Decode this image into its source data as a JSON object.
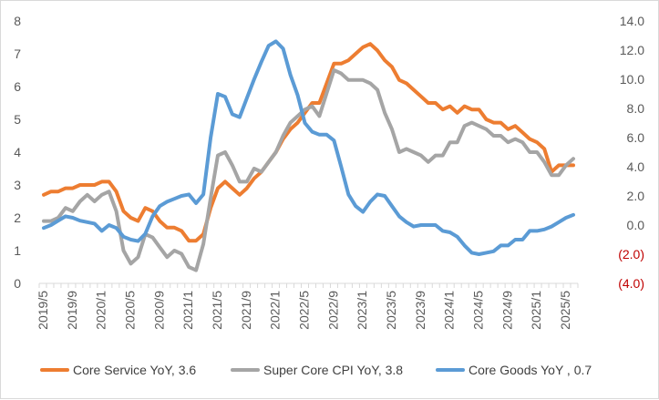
{
  "chart_data": {
    "type": "line",
    "title": "",
    "xlabel": "",
    "ylabel_left": "",
    "ylabel_right": "",
    "ylim_left": [
      0,
      8
    ],
    "ylim_right": [
      -4,
      14
    ],
    "left_tick_labels": [
      "0",
      "1",
      "2",
      "3",
      "4",
      "5",
      "6",
      "7",
      "8"
    ],
    "right_tick_labels": [
      "(4.0)",
      "(2.0)",
      "0.0",
      "2.0",
      "4.0",
      "6.0",
      "8.0",
      "10.0",
      "12.0",
      "14.0"
    ],
    "x_tick_labels": [
      "2019/5",
      "2019/9",
      "2020/1",
      "2020/5",
      "2020/9",
      "2021/1",
      "2021/5",
      "2021/9",
      "2022/1",
      "2022/5",
      "2022/9",
      "2023/1",
      "2023/5",
      "2023/9",
      "2024/1",
      "2024/5",
      "2024/9",
      "2025/1",
      "2025/5"
    ],
    "months_start": "2019/5",
    "n_months": 74,
    "legend_position": "bottom",
    "grid": false,
    "colors": {
      "core_service": "#ed7d31",
      "super_core": "#a5a5a5",
      "core_goods": "#5b9bd5",
      "negative_tick": "#c00000"
    },
    "series": [
      {
        "name": "Core Service YoY, 3.6",
        "axis": "left",
        "color": "#ed7d31",
        "values": [
          2.7,
          2.8,
          2.8,
          2.9,
          2.9,
          3.0,
          3.0,
          3.0,
          3.1,
          3.1,
          2.8,
          2.2,
          2.0,
          1.9,
          2.3,
          2.2,
          1.9,
          1.7,
          1.7,
          1.6,
          1.3,
          1.3,
          1.5,
          2.3,
          2.9,
          3.1,
          2.9,
          2.7,
          2.9,
          3.2,
          3.4,
          3.7,
          4.0,
          4.4,
          4.7,
          4.9,
          5.2,
          5.5,
          5.5,
          6.1,
          6.7,
          6.7,
          6.8,
          7.0,
          7.2,
          7.3,
          7.1,
          6.8,
          6.6,
          6.2,
          6.1,
          5.9,
          5.7,
          5.5,
          5.5,
          5.3,
          5.4,
          5.2,
          5.4,
          5.3,
          5.3,
          5.0,
          4.9,
          4.9,
          4.7,
          4.8,
          4.6,
          4.4,
          4.3,
          4.1,
          3.4,
          3.6,
          3.6,
          3.6
        ]
      },
      {
        "name": "Super Core CPI YoY, 3.8",
        "axis": "left",
        "color": "#a5a5a5",
        "values": [
          1.9,
          1.9,
          2.0,
          2.3,
          2.2,
          2.5,
          2.7,
          2.5,
          2.7,
          2.8,
          2.2,
          1.0,
          0.6,
          0.8,
          1.5,
          1.4,
          1.1,
          0.8,
          1.0,
          0.9,
          0.5,
          0.4,
          1.2,
          2.6,
          3.9,
          4.0,
          3.6,
          3.1,
          3.1,
          3.5,
          3.4,
          3.7,
          4.0,
          4.5,
          4.9,
          5.1,
          5.3,
          5.4,
          5.1,
          5.8,
          6.5,
          6.4,
          6.2,
          6.2,
          6.2,
          6.1,
          5.9,
          5.2,
          4.7,
          4.0,
          4.1,
          4.0,
          3.9,
          3.7,
          3.9,
          3.9,
          4.3,
          4.3,
          4.8,
          4.9,
          4.8,
          4.7,
          4.5,
          4.5,
          4.3,
          4.4,
          4.3,
          4.0,
          4.0,
          3.7,
          3.3,
          3.3,
          3.6,
          3.8
        ]
      },
      {
        "name": "Core Goods YoY , 0.7",
        "axis": "right",
        "color": "#5b9bd5",
        "values": [
          -0.2,
          0.0,
          0.3,
          0.6,
          0.5,
          0.3,
          0.2,
          0.1,
          -0.4,
          0.0,
          -0.2,
          -0.8,
          -1.0,
          -1.1,
          -0.6,
          0.6,
          1.3,
          1.6,
          1.8,
          2.0,
          2.1,
          1.5,
          2.1,
          6.0,
          9.0,
          8.8,
          7.6,
          7.4,
          8.7,
          10.0,
          11.2,
          12.3,
          12.6,
          12.1,
          10.3,
          8.9,
          7.0,
          6.4,
          6.2,
          6.2,
          5.8,
          4.0,
          2.1,
          1.3,
          0.9,
          1.6,
          2.1,
          2.0,
          1.3,
          0.6,
          0.2,
          -0.1,
          0.0,
          0.0,
          0.0,
          -0.4,
          -0.5,
          -0.8,
          -1.4,
          -1.9,
          -2.0,
          -1.9,
          -1.8,
          -1.4,
          -1.4,
          -1.0,
          -1.0,
          -0.4,
          -0.4,
          -0.3,
          -0.1,
          0.2,
          0.5,
          0.7
        ]
      }
    ]
  }
}
